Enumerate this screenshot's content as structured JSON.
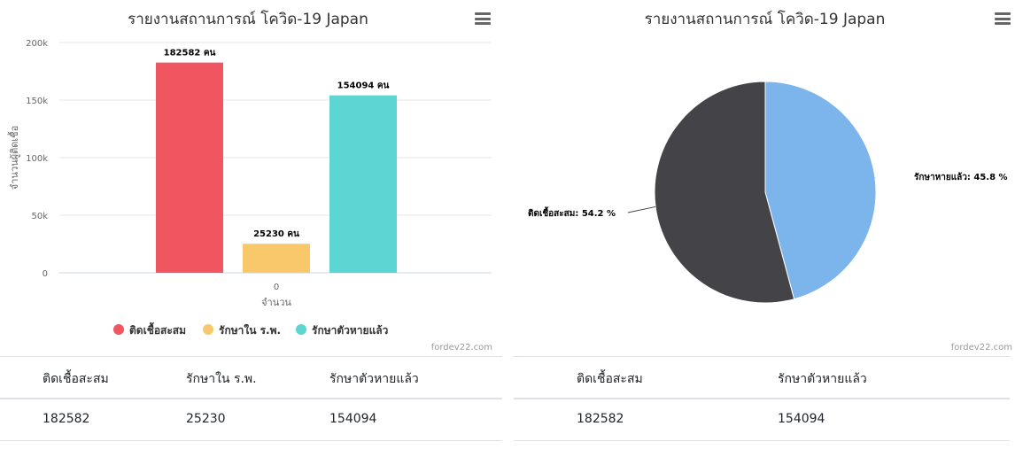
{
  "bar_panel": {
    "title": "รายงานสถานการณ์ โควิด-19 Japan",
    "credits": "fordev22.com",
    "y_axis_title": "จำนวนผู้ติดเชื้อ",
    "x_axis_title": "จำนวน",
    "x_tick": "0",
    "y_ticks": [
      "0",
      "50k",
      "100k",
      "150k",
      "200k"
    ],
    "legend": [
      "ติดเชื้อสะสม",
      "รักษาใน ร.พ.",
      "รักษาตัวหายแล้ว"
    ],
    "table_headers": [
      "ติดเชื้อสะสม",
      "รักษาใน ร.พ.",
      "รักษาตัวหายแล้ว"
    ],
    "table_values": [
      "182582",
      "25230",
      "154094"
    ]
  },
  "pie_panel": {
    "title": "รายงานสถานการณ์ โควิด-19 Japan",
    "credits": "fordev22.com",
    "labels": [
      "รักษาหายแล้ว: 45.8 %",
      "ติดเชื้อสะสม: 54.2 %"
    ],
    "table_headers": [
      "ติดเชื้อสะสม",
      "รักษาตัวหายแล้ว"
    ],
    "table_values": [
      "182582",
      "154094"
    ]
  },
  "chart_data": [
    {
      "type": "bar",
      "title": "รายงานสถานการณ์ โควิด-19 Japan",
      "xlabel": "จำนวน",
      "ylabel": "จำนวนผู้ติดเชื้อ",
      "categories": [
        "0"
      ],
      "ylim": [
        0,
        200000
      ],
      "grid": true,
      "legend_position": "bottom",
      "series": [
        {
          "name": "ติดเชื้อสะสม",
          "values": [
            182582
          ],
          "color": "#f0565f",
          "data_label": "182582 คน"
        },
        {
          "name": "รักษาใน ร.พ.",
          "values": [
            25230
          ],
          "color": "#f9c86b",
          "data_label": "25230 คน"
        },
        {
          "name": "รักษาตัวหายแล้ว",
          "values": [
            154094
          ],
          "color": "#5cd5d3",
          "data_label": "154094 คน"
        }
      ]
    },
    {
      "type": "pie",
      "title": "รายงานสถานการณ์ โควิด-19 Japan",
      "slices": [
        {
          "name": "รักษาหายแล้ว",
          "value": 45.8,
          "color": "#7cb4ec",
          "data_label": "รักษาหายแล้ว: 45.8 %"
        },
        {
          "name": "ติดเชื้อสะสม",
          "value": 54.2,
          "color": "#434348",
          "data_label": "ติดเชื้อสะสม: 54.2 %"
        }
      ]
    }
  ]
}
